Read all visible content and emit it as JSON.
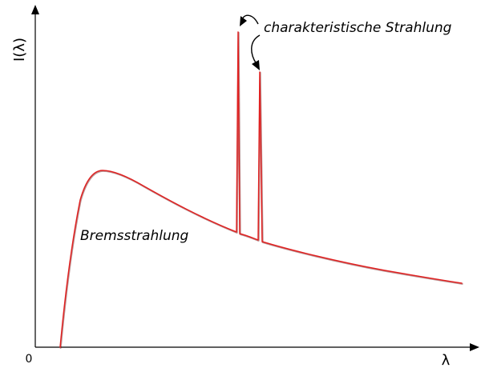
{
  "axes": {
    "y_label": "I(λ)",
    "x_label": "λ",
    "origin_label": "0"
  },
  "annotations": {
    "bremsstrahlung": "Bremsstrahlung",
    "characteristic": "charakteristische Strahlung"
  },
  "colors": {
    "spectrum": "#e02020",
    "axes": "#000000"
  }
}
